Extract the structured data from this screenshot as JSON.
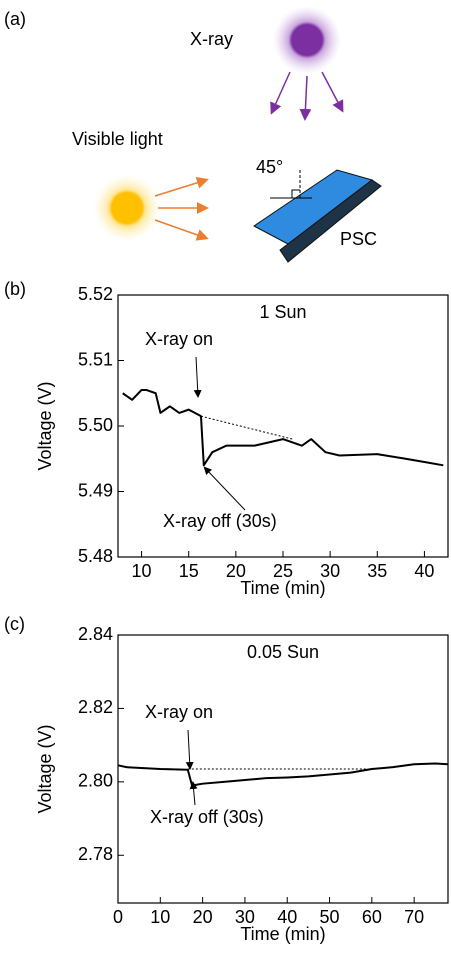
{
  "diagram": {
    "panel_label": "(a)",
    "xray": "X-ray",
    "visible": "Visible light",
    "angle": "45°",
    "device": "PSC"
  },
  "chart_data": [
    {
      "type": "line",
      "panel_label": "(b)",
      "title": "1 Sun",
      "x_label": "Time (min)",
      "y_label": "Voltage (V)",
      "annotations": [
        "X-ray on",
        "X-ray off (30s)"
      ],
      "color": "#000000",
      "x": [
        8,
        9,
        10,
        10.5,
        11.5,
        12,
        12.5,
        13,
        14,
        15,
        16.3,
        16.6,
        17.5,
        19,
        22,
        25,
        27,
        28,
        29.5,
        31,
        35,
        38,
        40,
        42
      ],
      "values": [
        5.505,
        5.504,
        5.5055,
        5.5055,
        5.505,
        5.502,
        5.5025,
        5.503,
        5.502,
        5.5025,
        5.5015,
        5.494,
        5.496,
        5.497,
        5.497,
        5.498,
        5.497,
        5.498,
        5.496,
        5.4955,
        5.4957,
        5.495,
        5.4945,
        5.494
      ],
      "reference_line": {
        "x": [
          16.3,
          26
        ],
        "y": [
          5.5015,
          5.498
        ]
      },
      "xlim": [
        7.5,
        42.5
      ],
      "ylim": [
        5.48,
        5.52
      ],
      "xticks": [
        10,
        15,
        20,
        25,
        30,
        35,
        40
      ],
      "yticks": [
        5.48,
        5.49,
        {
          "value": 5.5,
          "label": "5.50"
        },
        5.51,
        5.52
      ]
    },
    {
      "type": "line",
      "panel_label": "(c)",
      "title": "0.05 Sun",
      "x_label": "Time (min)",
      "y_label": "Voltage (V)",
      "annotations": [
        "X-ray on",
        "X-ray off (30s)"
      ],
      "color": "#000000",
      "x": [
        0,
        2,
        10,
        16.5,
        17.5,
        20,
        25,
        30,
        35,
        40,
        45,
        50,
        55,
        60,
        65,
        70,
        75,
        78
      ],
      "values": [
        2.8045,
        2.804,
        2.8035,
        2.8033,
        2.799,
        2.7995,
        2.8,
        2.8005,
        2.801,
        2.8012,
        2.8015,
        2.802,
        2.8025,
        2.8035,
        2.804,
        2.8048,
        2.805,
        2.8048
      ],
      "reference_line": {
        "x": [
          16.5,
          60
        ],
        "y": [
          2.8035,
          2.8035
        ]
      },
      "xlim": [
        0,
        78
      ],
      "ylim": [
        2.767,
        2.84
      ],
      "xticks": [
        0,
        10,
        20,
        30,
        40,
        50,
        60,
        70
      ],
      "yticks": [
        2.78,
        {
          "value": 2.8,
          "label": "2.80"
        },
        2.82,
        2.84
      ]
    }
  ]
}
